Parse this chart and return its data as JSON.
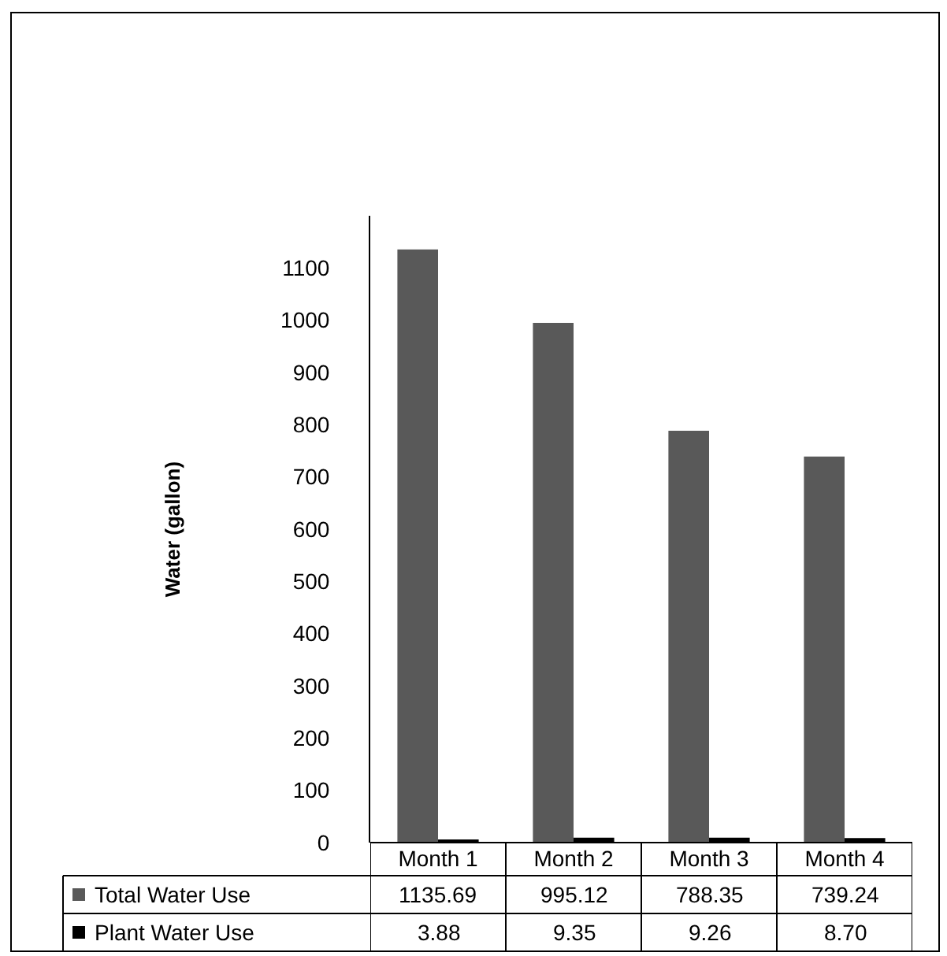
{
  "chart_data": {
    "type": "bar",
    "ylabel": "Water (gallon)",
    "categories": [
      "Month 1",
      "Month 2",
      "Month 3",
      "Month 4"
    ],
    "series": [
      {
        "name": "Total Water Use",
        "color": "#595959",
        "values": [
          1135.69,
          995.12,
          788.35,
          739.24
        ],
        "value_labels": [
          "1135.69",
          "995.12",
          "788.35",
          "739.24"
        ]
      },
      {
        "name": "Plant Water Use",
        "color": "#000000",
        "values": [
          3.88,
          9.35,
          9.26,
          8.7
        ],
        "value_labels": [
          "3.88",
          "9.35",
          "9.26",
          "8.70"
        ]
      }
    ],
    "legend": "bottom left",
    "ylim": [
      0,
      1200
    ],
    "yticks": [
      0,
      100,
      200,
      300,
      400,
      500,
      600,
      700,
      800,
      900,
      1000,
      1100
    ]
  }
}
